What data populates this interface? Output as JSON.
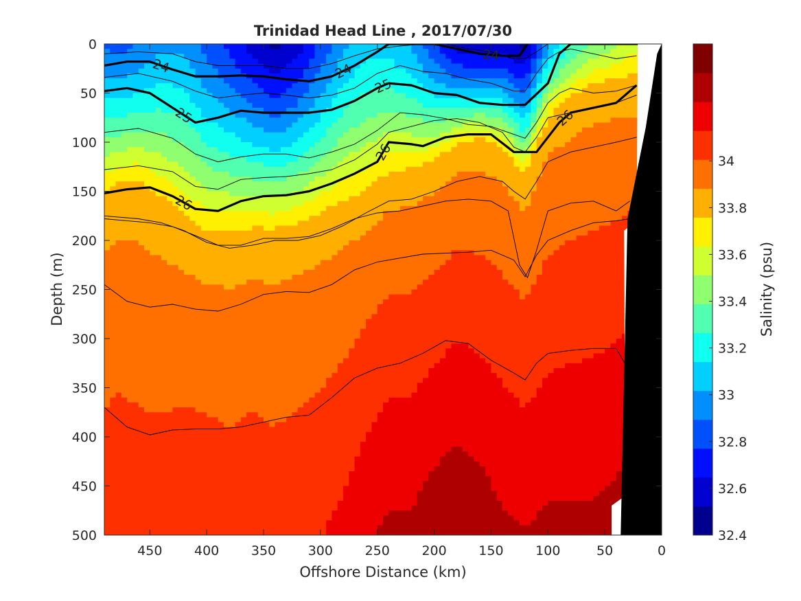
{
  "chart_data": {
    "type": "heatmap",
    "title": "Trinidad Head Line , 2017/07/30",
    "xlabel": "Offshore Distance (km)",
    "ylabel": "Depth (m)",
    "colorbar_label": "Salinity (psu)",
    "x_axis": {
      "range": [
        490,
        0
      ],
      "reversed": true,
      "ticks": [
        450,
        400,
        350,
        300,
        250,
        200,
        150,
        100,
        50,
        0
      ]
    },
    "y_axis": {
      "range": [
        0,
        500
      ],
      "reversed": true,
      "ticks": [
        0,
        50,
        100,
        150,
        200,
        250,
        300,
        350,
        400,
        450,
        500
      ]
    },
    "colorbar": {
      "range": [
        32.4,
        34.5
      ],
      "tick_values": [
        32.4,
        32.6,
        32.8,
        33,
        33.2,
        33.4,
        33.6,
        33.8,
        34
      ],
      "tick_labels": [
        "32.4",
        "32.6",
        "32.8",
        "33",
        "33.2",
        "33.4",
        "33.6",
        "33.8",
        "34"
      ],
      "colors": [
        "#00008f",
        "#0000cf",
        "#0010ff",
        "#0050ff",
        "#008fff",
        "#00cfff",
        "#10ffef",
        "#50ffaf",
        "#8fff70",
        "#cfff30",
        "#ffef00",
        "#ffaf00",
        "#ff7000",
        "#ff3000",
        "#ef0000",
        "#af0000",
        "#800000"
      ]
    },
    "x": [
      490,
      480,
      460,
      440,
      420,
      400,
      380,
      360,
      340,
      320,
      300,
      280,
      260,
      240,
      220,
      200,
      180,
      160,
      140,
      120,
      100,
      80,
      60,
      40,
      25
    ],
    "halocline_depth": [
      160,
      150,
      145,
      165,
      185,
      200,
      200,
      195,
      195,
      190,
      180,
      170,
      160,
      140,
      135,
      125,
      105,
      100,
      110,
      140,
      80,
      60,
      45,
      40,
      40
    ],
    "surface_min_salinity": [
      32.9,
      32.85,
      32.9,
      33.0,
      33.0,
      32.85,
      32.75,
      32.6,
      32.5,
      32.6,
      32.8,
      33.0,
      33.1,
      33.1,
      33.0,
      32.8,
      32.6,
      32.55,
      32.6,
      32.5,
      33.0,
      33.3,
      33.4,
      33.5,
      33.6
    ],
    "deep_salinity": [
      34.1,
      34.12,
      34.1,
      34.1,
      34.12,
      34.12,
      34.1,
      34.12,
      34.1,
      34.12,
      34.14,
      34.18,
      34.25,
      34.3,
      34.3,
      34.35,
      34.38,
      34.35,
      34.3,
      34.28,
      34.3,
      34.3,
      34.3,
      34.32,
      34.35
    ],
    "isopycnals": [
      {
        "label": "24",
        "bold": true,
        "x": [
          490,
          470,
          450,
          430,
          410,
          390,
          370,
          350,
          330,
          310,
          290,
          270,
          250,
          240,
          220,
          200,
          180,
          160,
          140,
          125,
          118
        ],
        "depth": [
          22,
          18,
          18,
          26,
          33,
          33,
          32,
          33,
          36,
          38,
          33,
          22,
          8,
          0,
          0,
          0,
          5,
          10,
          12,
          12,
          0
        ]
      },
      {
        "label": "25",
        "bold": true,
        "x": [
          490,
          470,
          450,
          430,
          410,
          390,
          370,
          350,
          330,
          310,
          290,
          270,
          250,
          240,
          220,
          200,
          180,
          160,
          140,
          120,
          100,
          90,
          80,
          60,
          40,
          20
        ],
        "depth": [
          48,
          45,
          50,
          65,
          80,
          75,
          68,
          70,
          70,
          70,
          67,
          58,
          45,
          40,
          42,
          50,
          52,
          60,
          62,
          62,
          40,
          10,
          0,
          0,
          0,
          0
        ]
      },
      {
        "label": "26",
        "bold": true,
        "x": [
          490,
          470,
          450,
          430,
          410,
          390,
          370,
          350,
          330,
          310,
          290,
          270,
          250,
          240,
          220,
          210,
          190,
          170,
          150,
          130,
          110,
          100,
          90,
          80,
          60,
          40,
          22
        ],
        "depth": [
          152,
          148,
          146,
          155,
          168,
          170,
          160,
          155,
          154,
          150,
          142,
          132,
          120,
          100,
          102,
          104,
          95,
          92,
          92,
          110,
          110,
          95,
          80,
          70,
          65,
          60,
          42
        ]
      }
    ],
    "thin_contours": [
      {
        "x": [
          490,
          460,
          430,
          410,
          390,
          370,
          350,
          330,
          310,
          290,
          270,
          250,
          230,
          210,
          190,
          170,
          150,
          130,
          120,
          110,
          100,
          90,
          80,
          60,
          40,
          22
        ],
        "depth": [
          10,
          8,
          10,
          18,
          22,
          22,
          22,
          25,
          25,
          20,
          12,
          5,
          2,
          0,
          0,
          5,
          8,
          15,
          15,
          8,
          0,
          0,
          0,
          0,
          0,
          0
        ]
      },
      {
        "x": [
          490,
          460,
          430,
          410,
          390,
          370,
          350,
          330,
          310,
          290,
          270,
          250,
          230,
          210,
          190,
          170,
          150,
          130,
          120,
          110,
          100,
          90,
          80,
          60,
          40,
          22
        ],
        "depth": [
          34,
          30,
          38,
          48,
          55,
          52,
          50,
          52,
          55,
          52,
          45,
          30,
          22,
          28,
          30,
          36,
          40,
          48,
          48,
          30,
          15,
          8,
          5,
          10,
          15,
          12
        ]
      },
      {
        "x": [
          490,
          460,
          430,
          410,
          390,
          370,
          350,
          330,
          310,
          290,
          270,
          250,
          230,
          210,
          190,
          170,
          150,
          130,
          120,
          110,
          100,
          90,
          80,
          60,
          40,
          22
        ],
        "depth": [
          90,
          86,
          96,
          112,
          120,
          115,
          112,
          112,
          116,
          110,
          102,
          88,
          70,
          72,
          76,
          82,
          84,
          92,
          96,
          80,
          60,
          50,
          45,
          50,
          48,
          42
        ]
      },
      {
        "x": [
          490,
          460,
          430,
          410,
          390,
          370,
          350,
          330,
          310,
          290,
          270,
          250,
          240,
          220,
          200,
          180,
          160,
          140,
          130,
          120,
          110,
          100,
          80,
          60,
          40,
          22
        ],
        "depth": [
          128,
          124,
          130,
          145,
          148,
          138,
          136,
          135,
          132,
          128,
          118,
          102,
          90,
          84,
          78,
          76,
          80,
          90,
          105,
          110,
          95,
          75,
          70,
          65,
          60,
          52
        ]
      },
      {
        "x": [
          490,
          460,
          440,
          420,
          400,
          380,
          360,
          340,
          320,
          300,
          280,
          260,
          240,
          220,
          200,
          180,
          160,
          140,
          130,
          120,
          110,
          100,
          80,
          60,
          40,
          22
        ],
        "depth": [
          175,
          178,
          182,
          190,
          202,
          208,
          205,
          200,
          200,
          195,
          185,
          172,
          160,
          158,
          150,
          140,
          135,
          140,
          150,
          158,
          140,
          120,
          110,
          105,
          100,
          95
        ]
      },
      {
        "x": [
          490,
          470,
          450,
          430,
          410,
          390,
          370,
          350,
          330,
          310,
          290,
          270,
          250,
          230,
          210,
          190,
          170,
          150,
          135,
          125,
          118,
          110,
          100,
          80,
          60,
          40,
          28
        ],
        "depth": [
          178,
          180,
          182,
          186,
          195,
          205,
          205,
          198,
          198,
          196,
          188,
          178,
          172,
          170,
          165,
          160,
          158,
          160,
          170,
          225,
          238,
          210,
          170,
          162,
          160,
          170,
          160
        ]
      },
      {
        "x": [
          490,
          470,
          450,
          430,
          410,
          390,
          370,
          350,
          330,
          310,
          290,
          270,
          250,
          230,
          210,
          190,
          170,
          150,
          130,
          120,
          110,
          100,
          80,
          60,
          40,
          28
        ],
        "depth": [
          245,
          262,
          268,
          265,
          270,
          272,
          265,
          255,
          252,
          253,
          245,
          230,
          222,
          218,
          214,
          213,
          212,
          210,
          220,
          237,
          215,
          200,
          190,
          182,
          180,
          178
        ]
      },
      {
        "x": [
          490,
          470,
          450,
          430,
          410,
          390,
          370,
          350,
          330,
          310,
          290,
          270,
          250,
          230,
          210,
          190,
          170,
          150,
          130,
          120,
          110,
          100,
          80,
          60,
          40,
          30
        ],
        "depth": [
          370,
          390,
          398,
          393,
          392,
          392,
          390,
          385,
          380,
          378,
          360,
          340,
          330,
          325,
          315,
          302,
          305,
          322,
          335,
          342,
          325,
          315,
          312,
          310,
          310,
          330
        ]
      }
    ],
    "seafloor": {
      "x": [
        0,
        4,
        14,
        30,
        36
      ],
      "depth": [
        0,
        10,
        85,
        178,
        500
      ]
    }
  }
}
